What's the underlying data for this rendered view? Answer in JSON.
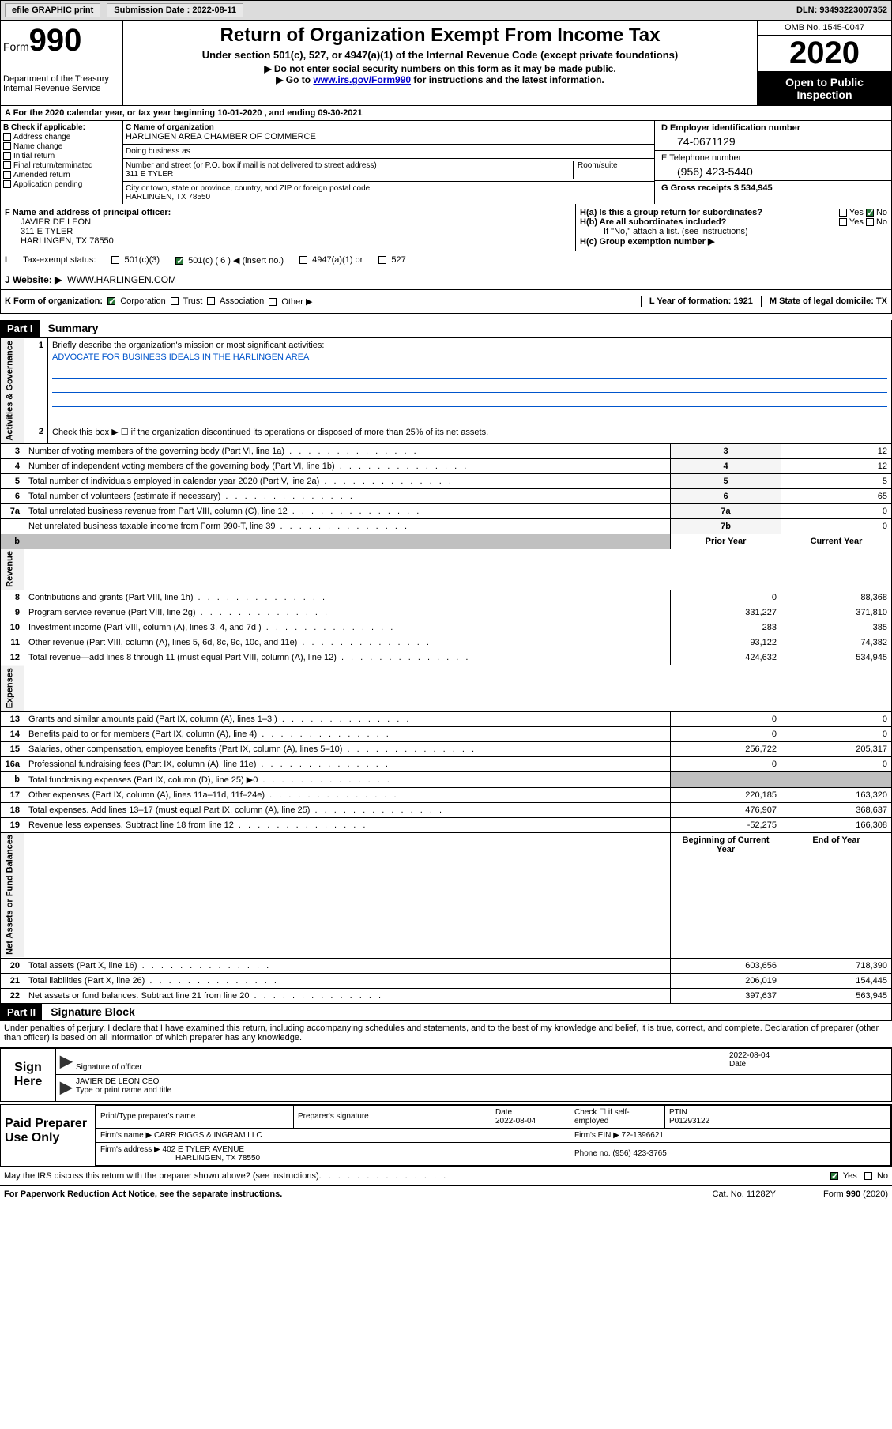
{
  "header": {
    "efile": "efile GRAPHIC print",
    "sub_label": "Submission Date : 2022-08-11",
    "dln": "DLN: 93493223007352"
  },
  "form": {
    "word": "Form",
    "num": "990",
    "dept": "Department of the Treasury Internal Revenue Service",
    "title": "Return of Organization Exempt From Income Tax",
    "subtitle": "Under section 501(c), 527, or 4947(a)(1) of the Internal Revenue Code (except private foundations)",
    "note1": "▶ Do not enter social security numbers on this form as it may be made public.",
    "note2_pre": "▶ Go to ",
    "note2_link": "www.irs.gov/Form990",
    "note2_post": " for instructions and the latest information.",
    "omb": "OMB No. 1545-0047",
    "year": "2020",
    "inspection": "Open to Public Inspection"
  },
  "rowA": "For the 2020 calendar year, or tax year beginning 10-01-2020    , and ending 09-30-2021",
  "checkB": {
    "title": "B Check if applicable:",
    "opts": [
      "Address change",
      "Name change",
      "Initial return",
      "Final return/terminated",
      "Amended return",
      "Application pending"
    ]
  },
  "colC": {
    "name_label": "C Name of organization",
    "name": "HARLINGEN AREA CHAMBER OF COMMERCE",
    "dba": "Doing business as",
    "addr_label": "Number and street (or P.O. box if mail is not delivered to street address)",
    "room": "Room/suite",
    "addr": "311 E TYLER",
    "city_label": "City or town, state or province, country, and ZIP or foreign postal code",
    "city": "HARLINGEN, TX  78550"
  },
  "colD": {
    "ein_label": "D Employer identification number",
    "ein": "74-0671129",
    "tel_label": "E Telephone number",
    "tel": "(956) 423-5440",
    "gross_label": "G Gross receipts $ 534,945"
  },
  "rowF": {
    "label": "F  Name and address of principal officer:",
    "name": "JAVIER DE LEON",
    "addr1": "311 E TYLER",
    "addr2": "HARLINGEN, TX  78550",
    "ha": "H(a)  Is this a group return for subordinates?",
    "hb": "H(b)  Are all subordinates included?",
    "hb_note": "If \"No,\" attach a list. (see instructions)",
    "hc": "H(c)  Group exemption number ▶"
  },
  "rowI": {
    "label": "Tax-exempt status:",
    "opt1": "501(c)(3)",
    "opt2": "501(c) ( 6 ) ◀ (insert no.)",
    "opt3": "4947(a)(1) or",
    "opt4": "527"
  },
  "rowJ": {
    "label": "J   Website: ▶",
    "val": "WWW.HARLINGEN.COM"
  },
  "rowK": {
    "label": "K Form of organization:",
    "opts": [
      "Corporation",
      "Trust",
      "Association",
      "Other ▶"
    ],
    "L": "L Year of formation: 1921",
    "M": "M State of legal domicile: TX"
  },
  "part1": {
    "hdr": "Part I",
    "title": "Summary",
    "q1": "Briefly describe the organization's mission or most significant activities:",
    "mission": "ADVOCATE FOR BUSINESS IDEALS IN THE HARLINGEN AREA",
    "q2": "Check this box ▶ ☐  if the organization discontinued its operations or disposed of more than 25% of its net assets.",
    "rows_gov": [
      {
        "n": "3",
        "t": "Number of voting members of the governing body (Part VI, line 1a)",
        "b": "3",
        "v": "12"
      },
      {
        "n": "4",
        "t": "Number of independent voting members of the governing body (Part VI, line 1b)",
        "b": "4",
        "v": "12"
      },
      {
        "n": "5",
        "t": "Total number of individuals employed in calendar year 2020 (Part V, line 2a)",
        "b": "5",
        "v": "5"
      },
      {
        "n": "6",
        "t": "Total number of volunteers (estimate if necessary)",
        "b": "6",
        "v": "65"
      },
      {
        "n": "7a",
        "t": "Total unrelated business revenue from Part VIII, column (C), line 12",
        "b": "7a",
        "v": "0"
      },
      {
        "n": "",
        "t": "Net unrelated business taxable income from Form 990-T, line 39",
        "b": "7b",
        "v": "0"
      }
    ],
    "rows_rev": [
      {
        "n": "8",
        "t": "Contributions and grants (Part VIII, line 1h)",
        "p": "0",
        "c": "88,368"
      },
      {
        "n": "9",
        "t": "Program service revenue (Part VIII, line 2g)",
        "p": "331,227",
        "c": "371,810"
      },
      {
        "n": "10",
        "t": "Investment income (Part VIII, column (A), lines 3, 4, and 7d )",
        "p": "283",
        "c": "385"
      },
      {
        "n": "11",
        "t": "Other revenue (Part VIII, column (A), lines 5, 6d, 8c, 9c, 10c, and 11e)",
        "p": "93,122",
        "c": "74,382"
      },
      {
        "n": "12",
        "t": "Total revenue—add lines 8 through 11 (must equal Part VIII, column (A), line 12)",
        "p": "424,632",
        "c": "534,945"
      }
    ],
    "rows_exp": [
      {
        "n": "13",
        "t": "Grants and similar amounts paid (Part IX, column (A), lines 1–3 )",
        "p": "0",
        "c": "0"
      },
      {
        "n": "14",
        "t": "Benefits paid to or for members (Part IX, column (A), line 4)",
        "p": "0",
        "c": "0"
      },
      {
        "n": "15",
        "t": "Salaries, other compensation, employee benefits (Part IX, column (A), lines 5–10)",
        "p": "256,722",
        "c": "205,317"
      },
      {
        "n": "16a",
        "t": "Professional fundraising fees (Part IX, column (A), line 11e)",
        "p": "0",
        "c": "0"
      },
      {
        "n": "b",
        "t": "Total fundraising expenses (Part IX, column (D), line 25) ▶0",
        "p": "",
        "c": "",
        "shaded": true
      },
      {
        "n": "17",
        "t": "Other expenses (Part IX, column (A), lines 11a–11d, 11f–24e)",
        "p": "220,185",
        "c": "163,320"
      },
      {
        "n": "18",
        "t": "Total expenses. Add lines 13–17 (must equal Part IX, column (A), line 25)",
        "p": "476,907",
        "c": "368,637"
      },
      {
        "n": "19",
        "t": "Revenue less expenses. Subtract line 18 from line 12",
        "p": "-52,275",
        "c": "166,308"
      }
    ],
    "rows_net": [
      {
        "n": "20",
        "t": "Total assets (Part X, line 16)",
        "p": "603,656",
        "c": "718,390"
      },
      {
        "n": "21",
        "t": "Total liabilities (Part X, line 26)",
        "p": "206,019",
        "c": "154,445"
      },
      {
        "n": "22",
        "t": "Net assets or fund balances. Subtract line 21 from line 20",
        "p": "397,637",
        "c": "563,945"
      }
    ],
    "side_gov": "Activities & Governance",
    "side_rev": "Revenue",
    "side_exp": "Expenses",
    "side_net": "Net Assets or Fund Balances",
    "hdr_prior": "Prior Year",
    "hdr_curr": "Current Year",
    "hdr_beg": "Beginning of Current Year",
    "hdr_end": "End of Year"
  },
  "part2": {
    "hdr": "Part II",
    "title": "Signature Block",
    "text": "Under penalties of perjury, I declare that I have examined this return, including accompanying schedules and statements, and to the best of my knowledge and belief, it is true, correct, and complete. Declaration of preparer (other than officer) is based on all information of which preparer has any knowledge.",
    "sign": "Sign Here",
    "sig_officer": "Signature of officer",
    "sig_date": "2022-08-04",
    "sig_date_label": "Date",
    "sig_name": "JAVIER DE LEON CEO",
    "sig_name_label": "Type or print name and title",
    "prep": "Paid Preparer Use Only",
    "prep_name_label": "Print/Type preparer's name",
    "prep_sig_label": "Preparer's signature",
    "prep_date_label": "Date",
    "prep_date": "2022-08-04",
    "prep_check": "Check ☐ if self-employed",
    "ptin_label": "PTIN",
    "ptin": "P01293122",
    "firm_name_label": "Firm's name    ▶",
    "firm_name": "CARR RIGGS & INGRAM LLC",
    "firm_ein_label": "Firm's EIN ▶",
    "firm_ein": "72-1396621",
    "firm_addr_label": "Firm's address ▶",
    "firm_addr1": "402 E TYLER AVENUE",
    "firm_addr2": "HARLINGEN, TX  78550",
    "phone_label": "Phone no.",
    "phone": "(956) 423-3765",
    "discuss": "May the IRS discuss this return with the preparer shown above? (see instructions)"
  },
  "footer": {
    "paperwork": "For Paperwork Reduction Act Notice, see the separate instructions.",
    "cat": "Cat. No. 11282Y",
    "form": "Form 990 (2020)"
  },
  "yn": {
    "yes": "Yes",
    "no": "No"
  }
}
